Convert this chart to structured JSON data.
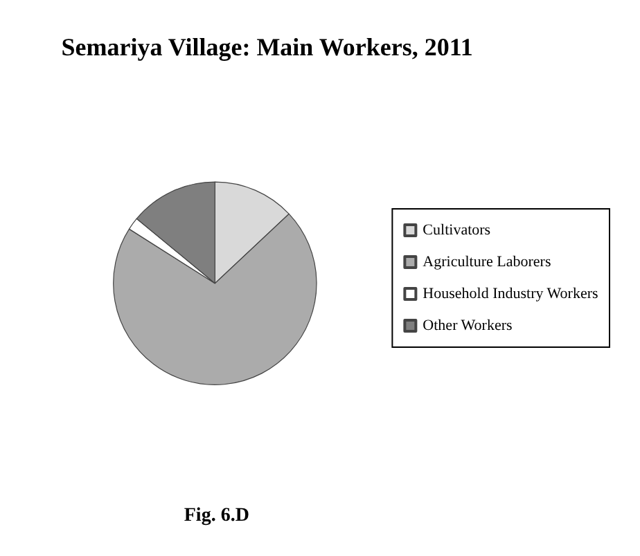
{
  "chart_data": {
    "type": "pie",
    "title": "Semariya Village: Main Workers, 2011",
    "categories": [
      "Cultivators",
      "Agriculture Laborers",
      "Household Industry Workers",
      "Other Workers"
    ],
    "values": [
      13,
      71,
      2,
      14
    ],
    "colors": [
      "#d9d9d9",
      "#ababab",
      "#ffffff",
      "#7f7f7f"
    ],
    "legend": "right",
    "annotations": [
      "Fig. 6.D"
    ]
  }
}
